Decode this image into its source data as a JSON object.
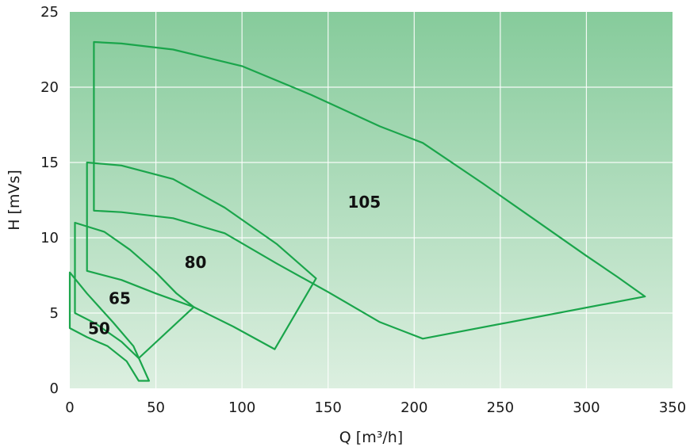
{
  "chart_data": {
    "type": "line",
    "title": "",
    "xlabel": "Q [m³/h]",
    "ylabel": "H [mVs]",
    "xlim": [
      0,
      350
    ],
    "ylim": [
      0,
      25
    ],
    "xticks": [
      0,
      50,
      100,
      150,
      200,
      250,
      300,
      350
    ],
    "yticks": [
      0,
      5,
      10,
      15,
      20,
      25
    ],
    "grid": true,
    "colors": {
      "line": "#1aa54b",
      "bg_top": "#86cb9b",
      "bg_bottom": "#dcefe0"
    },
    "regions": [
      {
        "label": "105",
        "label_at": [
          171,
          12.3
        ],
        "points": [
          [
            14,
            11.8
          ],
          [
            14,
            23
          ],
          [
            30,
            22.9
          ],
          [
            60,
            22.5
          ],
          [
            100,
            21.4
          ],
          [
            140,
            19.5
          ],
          [
            180,
            17.4
          ],
          [
            205,
            16.3
          ],
          [
            240,
            13.6
          ],
          [
            270,
            11.2
          ],
          [
            300,
            8.8
          ],
          [
            318,
            7.4
          ],
          [
            334,
            6.1
          ],
          [
            205,
            3.3
          ],
          [
            180,
            4.4
          ],
          [
            150,
            6.4
          ],
          [
            120,
            8.3
          ],
          [
            90,
            10.3
          ],
          [
            60,
            11.3
          ],
          [
            30,
            11.7
          ],
          [
            14,
            11.8
          ]
        ]
      },
      {
        "label": "80",
        "label_at": [
          73,
          8.3
        ],
        "points": [
          [
            10,
            7.8
          ],
          [
            10,
            15
          ],
          [
            30,
            14.8
          ],
          [
            60,
            13.9
          ],
          [
            90,
            12
          ],
          [
            120,
            9.6
          ],
          [
            143,
            7.3
          ],
          [
            119,
            2.6
          ],
          [
            95,
            4.1
          ],
          [
            72,
            5.4
          ],
          [
            50,
            6.3
          ],
          [
            30,
            7.2
          ],
          [
            10,
            7.8
          ]
        ]
      },
      {
        "label": "65",
        "label_at": [
          29,
          5.9
        ],
        "points": [
          [
            3,
            5
          ],
          [
            3,
            11
          ],
          [
            20,
            10.4
          ],
          [
            35,
            9.2
          ],
          [
            50,
            7.7
          ],
          [
            62,
            6.3
          ],
          [
            72,
            5.4
          ],
          [
            40,
            2
          ],
          [
            30,
            3.1
          ],
          [
            15,
            4.3
          ],
          [
            3,
            5
          ]
        ]
      },
      {
        "label": "50",
        "label_at": [
          17,
          3.9
        ],
        "points": [
          [
            0,
            4
          ],
          [
            0,
            7.7
          ],
          [
            10,
            6.3
          ],
          [
            25,
            4.4
          ],
          [
            37,
            2.8
          ],
          [
            46,
            0.5
          ],
          [
            40,
            0.5
          ],
          [
            33,
            1.8
          ],
          [
            22,
            2.8
          ],
          [
            10,
            3.4
          ],
          [
            0,
            4
          ]
        ]
      }
    ]
  }
}
